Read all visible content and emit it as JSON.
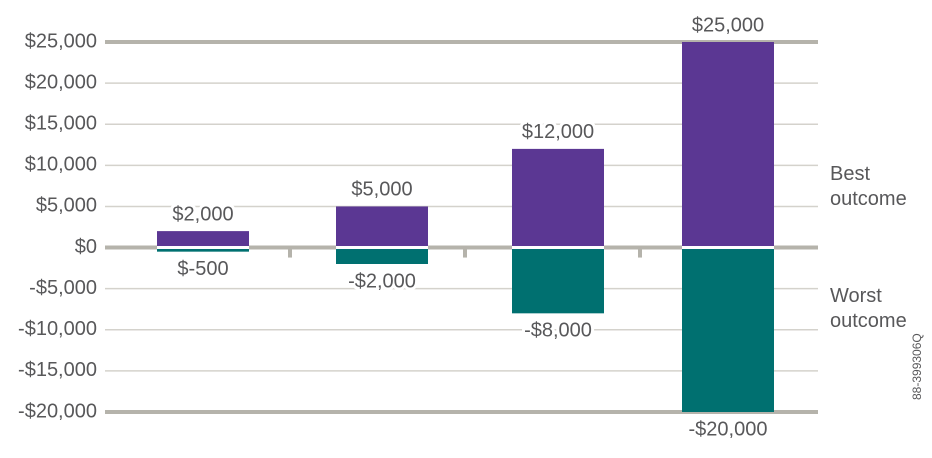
{
  "chart_data": {
    "type": "bar",
    "categories": [
      null,
      null,
      null,
      null
    ],
    "series": [
      {
        "name": "Best outcome",
        "color": "#5b3793",
        "values": [
          2000,
          5000,
          12000,
          25000
        ],
        "value_labels": [
          "$2,000",
          "$5,000",
          "$12,000",
          "$25,000"
        ]
      },
      {
        "name": "Worst outcome",
        "color": "#007070",
        "values": [
          -500,
          -2000,
          -8000,
          -20000
        ],
        "value_labels": [
          "$-500",
          "-$2,000",
          "-$8,000",
          "-$20,000"
        ]
      }
    ],
    "ylim": [
      -20000,
      25000
    ],
    "yticks": [
      {
        "value": -20000,
        "label": "-$20,000"
      },
      {
        "value": -15000,
        "label": "-$15,000"
      },
      {
        "value": -10000,
        "label": "-$10,000"
      },
      {
        "value": -5000,
        "label": "-$5,000"
      },
      {
        "value": 0,
        "label": "$0"
      },
      {
        "value": 5000,
        "label": "$5,000"
      },
      {
        "value": 10000,
        "label": "$10,000"
      },
      {
        "value": 15000,
        "label": "$15,000"
      },
      {
        "value": 20000,
        "label": "$20,000"
      },
      {
        "value": 25000,
        "label": "$25,000"
      }
    ],
    "grid": true,
    "legend": "right",
    "note": "88-399306Q"
  }
}
